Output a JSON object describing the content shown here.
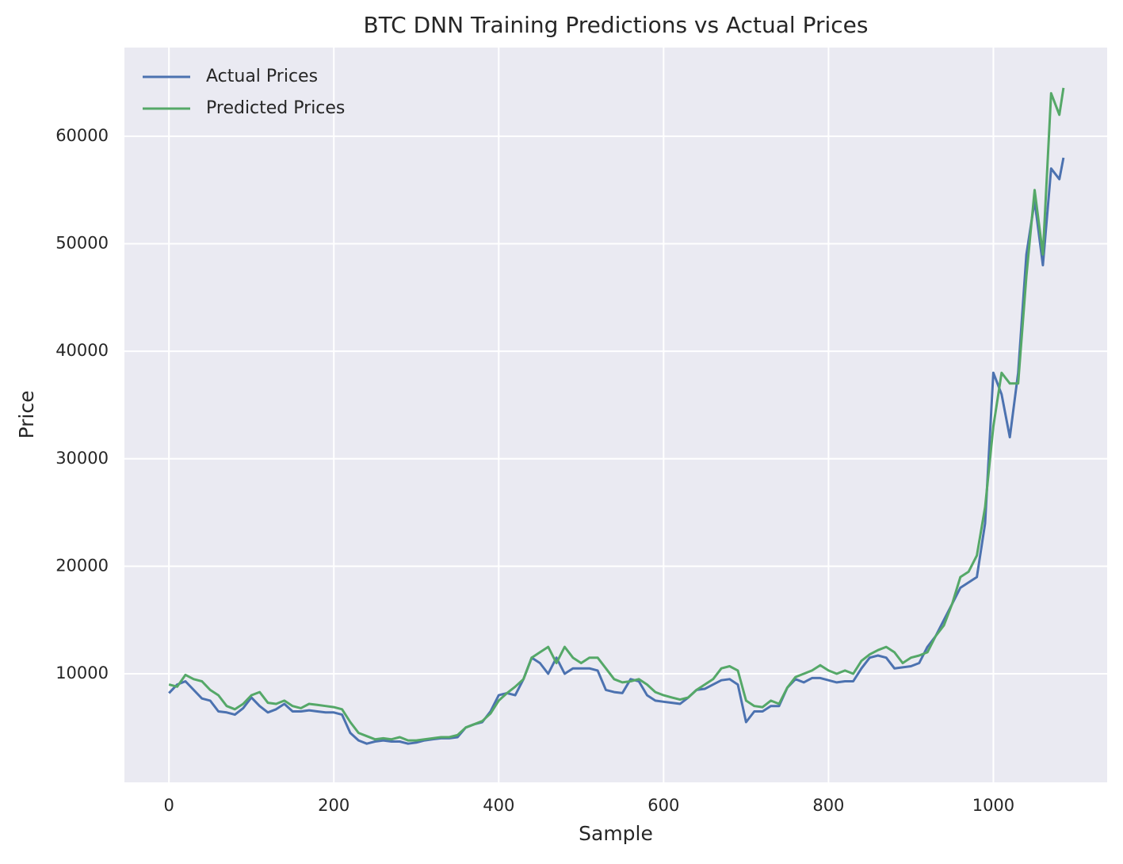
{
  "chart_data": {
    "type": "line",
    "title": "BTC DNN Training Predictions vs Actual Prices",
    "xlabel": "Sample",
    "ylabel": "Price",
    "x": [
      0,
      10,
      20,
      30,
      40,
      50,
      60,
      70,
      80,
      90,
      100,
      110,
      120,
      130,
      140,
      150,
      160,
      170,
      180,
      190,
      200,
      210,
      220,
      230,
      240,
      250,
      260,
      270,
      280,
      290,
      300,
      310,
      320,
      330,
      340,
      350,
      360,
      370,
      380,
      390,
      400,
      410,
      420,
      430,
      440,
      450,
      460,
      470,
      480,
      490,
      500,
      510,
      520,
      530,
      540,
      550,
      560,
      570,
      580,
      590,
      600,
      610,
      620,
      630,
      640,
      650,
      660,
      670,
      680,
      690,
      700,
      710,
      720,
      730,
      740,
      750,
      760,
      770,
      780,
      790,
      800,
      810,
      820,
      830,
      840,
      850,
      860,
      870,
      880,
      890,
      900,
      910,
      920,
      930,
      940,
      950,
      960,
      970,
      980,
      990,
      1000,
      1010,
      1020,
      1030,
      1040,
      1050,
      1060,
      1070,
      1080,
      1085
    ],
    "series": [
      {
        "name": "Actual Prices",
        "color": "#4c72b0",
        "values": [
          8200,
          9000,
          9300,
          8500,
          7700,
          7500,
          6500,
          6400,
          6200,
          6800,
          7800,
          7000,
          6400,
          6700,
          7200,
          6500,
          6500,
          6600,
          6500,
          6400,
          6400,
          6200,
          4500,
          3800,
          3500,
          3700,
          3800,
          3700,
          3700,
          3500,
          3600,
          3800,
          3900,
          4000,
          4000,
          4100,
          5000,
          5300,
          5500,
          6500,
          8000,
          8200,
          8000,
          9500,
          11500,
          11000,
          10000,
          11500,
          10000,
          10500,
          10500,
          10500,
          10300,
          8500,
          8300,
          8200,
          9500,
          9300,
          8000,
          7500,
          7400,
          7300,
          7200,
          7800,
          8500,
          8600,
          9000,
          9400,
          9500,
          9000,
          5500,
          6500,
          6500,
          7000,
          7000,
          8700,
          9500,
          9200,
          9600,
          9600,
          9400,
          9200,
          9300,
          9300,
          10500,
          11500,
          11700,
          11500,
          10500,
          10600,
          10700,
          11000,
          12500,
          13500,
          15000,
          16500,
          18000,
          18500,
          19000,
          24000,
          38000,
          36000,
          32000,
          38000,
          49000,
          54000,
          48000,
          57000,
          56000,
          58000
        ]
      },
      {
        "name": "Predicted Prices",
        "color": "#55a868",
        "values": [
          9000,
          8800,
          9900,
          9500,
          9300,
          8500,
          8000,
          7000,
          6700,
          7200,
          8000,
          8300,
          7300,
          7200,
          7500,
          7000,
          6800,
          7200,
          7100,
          7000,
          6900,
          6700,
          5500,
          4500,
          4200,
          3900,
          4000,
          3900,
          4100,
          3800,
          3800,
          3900,
          4000,
          4100,
          4100,
          4300,
          5000,
          5300,
          5600,
          6300,
          7500,
          8200,
          8800,
          9500,
          11500,
          12000,
          12500,
          11000,
          12500,
          11500,
          11000,
          11500,
          11500,
          10500,
          9500,
          9200,
          9300,
          9500,
          9000,
          8300,
          8000,
          7800,
          7600,
          7800,
          8500,
          9000,
          9500,
          10500,
          10700,
          10300,
          7500,
          7000,
          6900,
          7500,
          7200,
          8700,
          9700,
          10000,
          10300,
          10800,
          10300,
          10000,
          10300,
          10000,
          11200,
          11800,
          12200,
          12500,
          12000,
          11000,
          11500,
          11700,
          12000,
          13500,
          14500,
          16500,
          19000,
          19500,
          21000,
          25500,
          33000,
          38000,
          37000,
          37000,
          47000,
          55000,
          49000,
          64000,
          62000,
          64500
        ]
      }
    ],
    "xlim": [
      -54,
      1138
    ],
    "ylim": [
      -100,
      68250
    ],
    "xticks": [
      0,
      200,
      400,
      600,
      800,
      1000
    ],
    "yticks": [
      10000,
      20000,
      30000,
      40000,
      50000,
      60000
    ],
    "grid": true,
    "legend": "upper-left"
  }
}
